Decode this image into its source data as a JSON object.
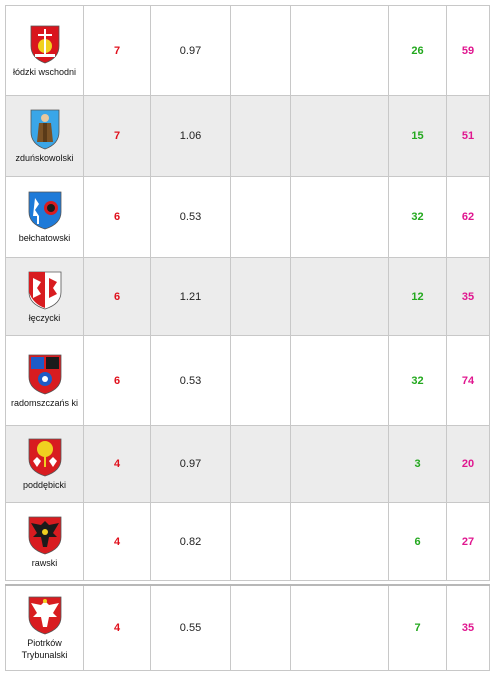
{
  "rows": [
    {
      "name": "łódzki wschodni",
      "col1": "7",
      "col2": "0.97",
      "col3": "",
      "col4": "",
      "col5": "26",
      "col6": "59",
      "crest_icon": "lodzki-wschodni-crest-icon"
    },
    {
      "name": "zduńskowolski",
      "col1": "7",
      "col2": "1.06",
      "col3": "",
      "col4": "",
      "col5": "15",
      "col6": "51",
      "crest_icon": "zdunskowolski-crest-icon"
    },
    {
      "name": "bełchatowski",
      "col1": "6",
      "col2": "0.53",
      "col3": "",
      "col4": "",
      "col5": "32",
      "col6": "62",
      "crest_icon": "belchatowski-crest-icon"
    },
    {
      "name": "łęczycki",
      "col1": "6",
      "col2": "1.21",
      "col3": "",
      "col4": "",
      "col5": "12",
      "col6": "35",
      "crest_icon": "leczycki-crest-icon"
    },
    {
      "name": "radomszczańs ki",
      "col1": "6",
      "col2": "0.53",
      "col3": "",
      "col4": "",
      "col5": "32",
      "col6": "74",
      "crest_icon": "radomszczanski-crest-icon"
    },
    {
      "name": "poddębicki",
      "col1": "4",
      "col2": "0.97",
      "col3": "",
      "col4": "",
      "col5": "3",
      "col6": "20",
      "crest_icon": "poddebicki-crest-icon"
    },
    {
      "name": "rawski",
      "col1": "4",
      "col2": "0.82",
      "col3": "",
      "col4": "",
      "col5": "6",
      "col6": "27",
      "crest_icon": "rawski-crest-icon"
    },
    {
      "name": "Piotrków Trybunalski",
      "col1": "4",
      "col2": "0.55",
      "col3": "",
      "col4": "",
      "col5": "7",
      "col6": "35",
      "crest_icon": "piotrkow-crest-icon"
    }
  ],
  "colors": {
    "red": "#e0101c",
    "green": "#23a81e",
    "pink": "#e0168f",
    "alt_row": "#ececec"
  }
}
